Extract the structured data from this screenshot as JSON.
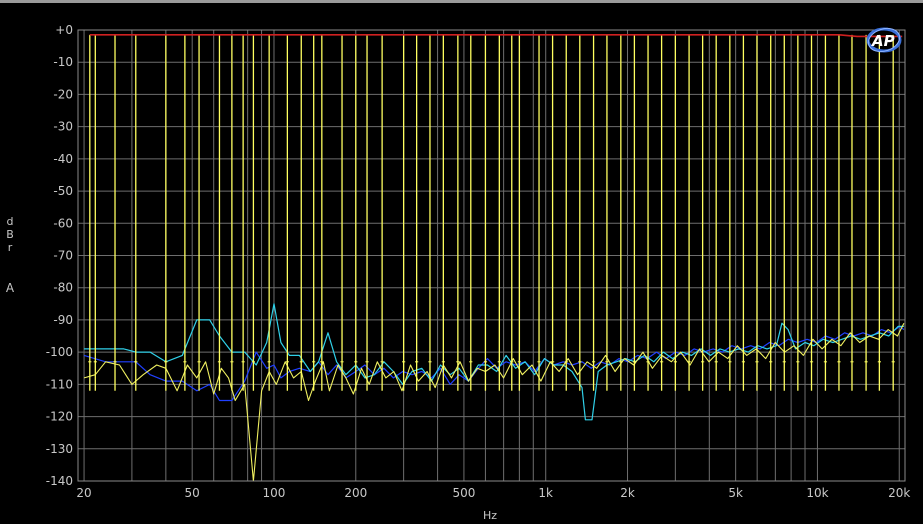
{
  "chart_data": {
    "type": "line",
    "title": "",
    "xlabel": "Hz",
    "ylabel": "dBr",
    "channel_label": "A",
    "x_scale": "log",
    "xlim": [
      19,
      21000
    ],
    "ylim": [
      -140,
      0
    ],
    "grid": true,
    "x_ticks": [
      {
        "v": 20,
        "label": "20"
      },
      {
        "v": 50,
        "label": "50"
      },
      {
        "v": 100,
        "label": "100"
      },
      {
        "v": 200,
        "label": "200"
      },
      {
        "v": 500,
        "label": "500"
      },
      {
        "v": 1000,
        "label": "1k"
      },
      {
        "v": 2000,
        "label": "2k"
      },
      {
        "v": 5000,
        "label": "5k"
      },
      {
        "v": 10000,
        "label": "10k"
      },
      {
        "v": 20000,
        "label": "20k"
      }
    ],
    "y_ticks": [
      {
        "v": 0,
        "label": "+0"
      },
      {
        "v": -10,
        "label": "-10"
      },
      {
        "v": -20,
        "label": "-20"
      },
      {
        "v": -30,
        "label": "-30"
      },
      {
        "v": -40,
        "label": "-40"
      },
      {
        "v": -50,
        "label": "-50"
      },
      {
        "v": -60,
        "label": "-60"
      },
      {
        "v": -70,
        "label": "-70"
      },
      {
        "v": -80,
        "label": "-80"
      },
      {
        "v": -90,
        "label": "-90"
      },
      {
        "v": -100,
        "label": "-100"
      },
      {
        "v": -110,
        "label": "-110"
      },
      {
        "v": -120,
        "label": "-120"
      },
      {
        "v": -130,
        "label": "-130"
      },
      {
        "v": -140,
        "label": "-140"
      }
    ],
    "colors": {
      "background": "#000000",
      "grid": "#6e6e6e",
      "reference": "#d02020",
      "tones": "#ffff60",
      "noise_yellow": "#f0f060",
      "noise_cyan": "#30d0e8",
      "noise_blue": "#2040ff"
    },
    "series": [
      {
        "id": "reference",
        "points": [
          [
            21,
            -1.5
          ],
          [
            12000,
            -1.5
          ],
          [
            14000,
            -2
          ],
          [
            20500,
            -2
          ]
        ]
      },
      {
        "id": "tones",
        "x": [
          21,
          22,
          26,
          31,
          40,
          47,
          53,
          63,
          70,
          77,
          84,
          96,
          112,
          126,
          140,
          150,
          178,
          200,
          220,
          250,
          300,
          335,
          375,
          420,
          475,
          530,
          600,
          675,
          750,
          800,
          945,
          1060,
          1190,
          1335,
          1500,
          1680,
          1890,
          2120,
          2380,
          2670,
          3000,
          3370,
          3780,
          4240,
          4760,
          5340,
          5990,
          6730,
          7550,
          8470,
          9510,
          10700,
          12000,
          13400,
          15100,
          16900,
          19000
        ],
        "peak": -1.5
      },
      {
        "id": "noise-yellow",
        "points": [
          [
            20,
            -108
          ],
          [
            22,
            -107
          ],
          [
            24,
            -103
          ],
          [
            27,
            -104
          ],
          [
            30,
            -110
          ],
          [
            33,
            -107
          ],
          [
            37,
            -104
          ],
          [
            40,
            -105
          ],
          [
            44,
            -112
          ],
          [
            48,
            -104
          ],
          [
            52,
            -108
          ],
          [
            56,
            -103
          ],
          [
            60,
            -113
          ],
          [
            64,
            -105
          ],
          [
            68,
            -108
          ],
          [
            72,
            -115
          ],
          [
            78,
            -110
          ],
          [
            84,
            -140
          ],
          [
            90,
            -112
          ],
          [
            96,
            -106
          ],
          [
            102,
            -110
          ],
          [
            110,
            -103
          ],
          [
            118,
            -108
          ],
          [
            126,
            -106
          ],
          [
            134,
            -115
          ],
          [
            142,
            -109
          ],
          [
            152,
            -103
          ],
          [
            160,
            -112
          ],
          [
            172,
            -104
          ],
          [
            184,
            -108
          ],
          [
            196,
            -113
          ],
          [
            210,
            -105
          ],
          [
            224,
            -110
          ],
          [
            240,
            -103
          ],
          [
            258,
            -108
          ],
          [
            276,
            -106
          ],
          [
            296,
            -112
          ],
          [
            318,
            -104
          ],
          [
            340,
            -109
          ],
          [
            366,
            -106
          ],
          [
            392,
            -111
          ],
          [
            420,
            -104
          ],
          [
            450,
            -108
          ],
          [
            484,
            -103
          ],
          [
            520,
            -109
          ],
          [
            560,
            -105
          ],
          [
            600,
            -106
          ],
          [
            650,
            -104
          ],
          [
            700,
            -108
          ],
          [
            760,
            -102
          ],
          [
            820,
            -107
          ],
          [
            890,
            -104
          ],
          [
            960,
            -109
          ],
          [
            1040,
            -103
          ],
          [
            1120,
            -106
          ],
          [
            1210,
            -102
          ],
          [
            1310,
            -107
          ],
          [
            1420,
            -103
          ],
          [
            1540,
            -105
          ],
          [
            1660,
            -101
          ],
          [
            1800,
            -106
          ],
          [
            1950,
            -102
          ],
          [
            2110,
            -104
          ],
          [
            2280,
            -100
          ],
          [
            2470,
            -105
          ],
          [
            2680,
            -101
          ],
          [
            2900,
            -103
          ],
          [
            3140,
            -100
          ],
          [
            3400,
            -104
          ],
          [
            3680,
            -99
          ],
          [
            3990,
            -103
          ],
          [
            4320,
            -100
          ],
          [
            4680,
            -102
          ],
          [
            5070,
            -98
          ],
          [
            5490,
            -101
          ],
          [
            5950,
            -99
          ],
          [
            6450,
            -102
          ],
          [
            6990,
            -97
          ],
          [
            7570,
            -100
          ],
          [
            8200,
            -98
          ],
          [
            8880,
            -101
          ],
          [
            9620,
            -96
          ],
          [
            10400,
            -99
          ],
          [
            11300,
            -96
          ],
          [
            12200,
            -98
          ],
          [
            13200,
            -94
          ],
          [
            14300,
            -97
          ],
          [
            15500,
            -95
          ],
          [
            16800,
            -96
          ],
          [
            18200,
            -93
          ],
          [
            19700,
            -95
          ],
          [
            20800,
            -91
          ]
        ]
      },
      {
        "id": "noise-cyan",
        "points": [
          [
            20,
            -99
          ],
          [
            24,
            -99
          ],
          [
            28,
            -99
          ],
          [
            31,
            -100
          ],
          [
            35,
            -100
          ],
          [
            40,
            -103
          ],
          [
            46,
            -101
          ],
          [
            52,
            -90
          ],
          [
            58,
            -90
          ],
          [
            63,
            -95
          ],
          [
            70,
            -100
          ],
          [
            78,
            -100
          ],
          [
            86,
            -104
          ],
          [
            94,
            -97
          ],
          [
            100,
            -85
          ],
          [
            106,
            -97
          ],
          [
            114,
            -101
          ],
          [
            124,
            -101
          ],
          [
            136,
            -106
          ],
          [
            146,
            -103
          ],
          [
            158,
            -94
          ],
          [
            170,
            -103
          ],
          [
            184,
            -107
          ],
          [
            200,
            -104
          ],
          [
            216,
            -108
          ],
          [
            234,
            -107
          ],
          [
            254,
            -103
          ],
          [
            275,
            -106
          ],
          [
            298,
            -110
          ],
          [
            322,
            -106
          ],
          [
            350,
            -105
          ],
          [
            380,
            -109
          ],
          [
            410,
            -104
          ],
          [
            445,
            -107
          ],
          [
            480,
            -105
          ],
          [
            520,
            -109
          ],
          [
            565,
            -104
          ],
          [
            610,
            -104
          ],
          [
            660,
            -106
          ],
          [
            715,
            -101
          ],
          [
            775,
            -105
          ],
          [
            840,
            -103
          ],
          [
            910,
            -107
          ],
          [
            990,
            -102
          ],
          [
            1070,
            -104
          ],
          [
            1160,
            -104
          ],
          [
            1250,
            -106
          ],
          [
            1360,
            -111
          ],
          [
            1400,
            -121
          ],
          [
            1480,
            -121
          ],
          [
            1560,
            -106
          ],
          [
            1680,
            -104
          ],
          [
            1820,
            -103
          ],
          [
            1970,
            -102
          ],
          [
            2130,
            -103
          ],
          [
            2310,
            -101
          ],
          [
            2500,
            -103
          ],
          [
            2710,
            -100
          ],
          [
            2930,
            -102
          ],
          [
            3180,
            -100
          ],
          [
            3440,
            -101
          ],
          [
            3730,
            -99
          ],
          [
            4040,
            -101
          ],
          [
            4380,
            -99
          ],
          [
            4740,
            -100
          ],
          [
            5130,
            -99
          ],
          [
            5560,
            -100
          ],
          [
            6020,
            -98
          ],
          [
            6520,
            -99
          ],
          [
            7060,
            -98
          ],
          [
            7400,
            -91
          ],
          [
            7800,
            -93
          ],
          [
            8300,
            -99
          ],
          [
            9000,
            -97
          ],
          [
            9700,
            -98
          ],
          [
            10500,
            -96
          ],
          [
            11400,
            -97
          ],
          [
            12300,
            -96
          ],
          [
            13300,
            -95
          ],
          [
            14400,
            -96
          ],
          [
            15600,
            -95
          ],
          [
            16900,
            -94
          ],
          [
            18300,
            -95
          ],
          [
            19800,
            -92
          ],
          [
            20800,
            -92
          ]
        ]
      },
      {
        "id": "noise-blue",
        "points": [
          [
            20,
            -101
          ],
          [
            24,
            -103
          ],
          [
            28,
            -103
          ],
          [
            31,
            -103
          ],
          [
            35,
            -107
          ],
          [
            40,
            -109
          ],
          [
            46,
            -109
          ],
          [
            52,
            -112
          ],
          [
            58,
            -110
          ],
          [
            63,
            -115
          ],
          [
            70,
            -115
          ],
          [
            78,
            -109
          ],
          [
            86,
            -100
          ],
          [
            94,
            -105
          ],
          [
            100,
            -104
          ],
          [
            106,
            -108
          ],
          [
            114,
            -106
          ],
          [
            124,
            -105
          ],
          [
            136,
            -106
          ],
          [
            146,
            -103
          ],
          [
            158,
            -107
          ],
          [
            170,
            -104
          ],
          [
            184,
            -108
          ],
          [
            200,
            -106
          ],
          [
            216,
            -104
          ],
          [
            234,
            -107
          ],
          [
            254,
            -105
          ],
          [
            275,
            -108
          ],
          [
            298,
            -106
          ],
          [
            322,
            -107
          ],
          [
            350,
            -106
          ],
          [
            380,
            -108
          ],
          [
            410,
            -105
          ],
          [
            445,
            -110
          ],
          [
            480,
            -107
          ],
          [
            520,
            -109
          ],
          [
            565,
            -105
          ],
          [
            610,
            -102
          ],
          [
            660,
            -105
          ],
          [
            715,
            -103
          ],
          [
            775,
            -104
          ],
          [
            840,
            -103
          ],
          [
            910,
            -106
          ],
          [
            990,
            -102
          ],
          [
            1070,
            -104
          ],
          [
            1160,
            -103
          ],
          [
            1250,
            -104
          ],
          [
            1360,
            -103
          ],
          [
            1470,
            -105
          ],
          [
            1590,
            -103
          ],
          [
            1720,
            -104
          ],
          [
            1860,
            -102
          ],
          [
            2010,
            -103
          ],
          [
            2180,
            -101
          ],
          [
            2360,
            -102
          ],
          [
            2560,
            -100
          ],
          [
            2770,
            -102
          ],
          [
            3000,
            -100
          ],
          [
            3250,
            -101
          ],
          [
            3520,
            -99
          ],
          [
            3810,
            -100
          ],
          [
            4130,
            -99
          ],
          [
            4470,
            -100
          ],
          [
            4840,
            -98
          ],
          [
            5240,
            -99
          ],
          [
            5680,
            -98
          ],
          [
            6150,
            -99
          ],
          [
            6660,
            -97
          ],
          [
            7210,
            -98
          ],
          [
            7810,
            -96
          ],
          [
            8460,
            -97
          ],
          [
            9160,
            -96
          ],
          [
            9920,
            -97
          ],
          [
            10700,
            -95
          ],
          [
            11600,
            -96
          ],
          [
            12600,
            -94
          ],
          [
            13600,
            -95
          ],
          [
            14700,
            -94
          ],
          [
            15900,
            -95
          ],
          [
            17200,
            -93
          ],
          [
            18600,
            -94
          ],
          [
            20100,
            -92
          ],
          [
            20800,
            -93
          ]
        ]
      }
    ]
  }
}
